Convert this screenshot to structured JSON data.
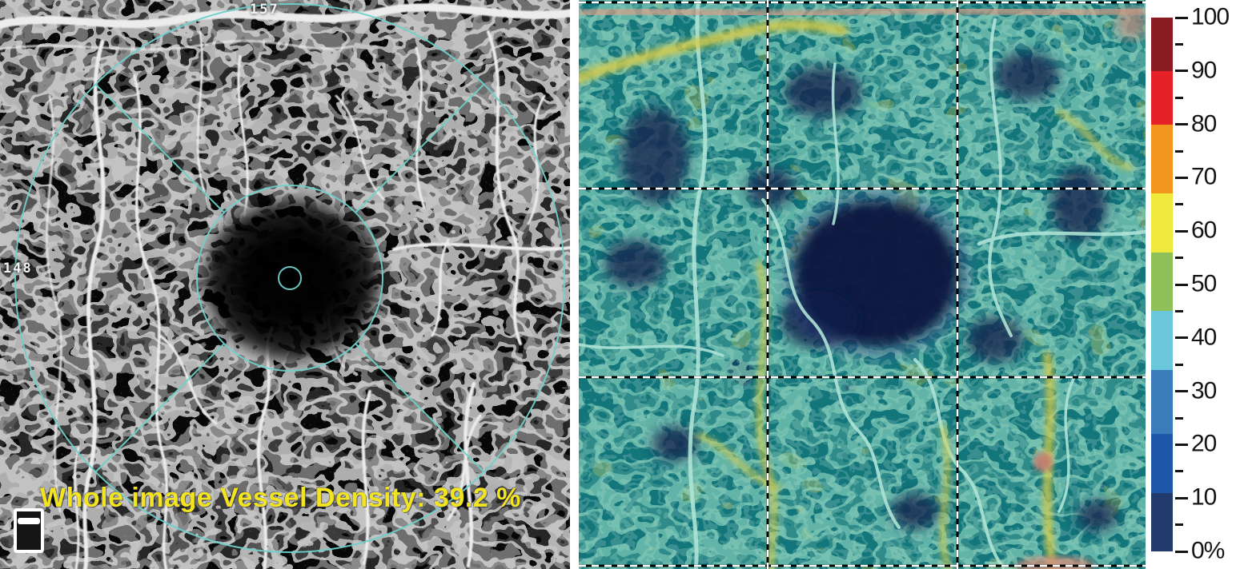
{
  "left_panel": {
    "top_scan_label": "157",
    "side_scan_label": "148",
    "caption": "Whole image Vessel Density: 39.2 %",
    "caption_color": "#f2e41e",
    "overlay_color": "#6fd0cb",
    "icon": "slab-layer-icon"
  },
  "right_panel": {
    "grid_rows": 3,
    "grid_cols": 3,
    "grid_line_style": "dashed white/black"
  },
  "colorbar": {
    "major_ticks": [
      {
        "value": 100,
        "label": "100"
      },
      {
        "value": 90,
        "label": "90"
      },
      {
        "value": 80,
        "label": "80"
      },
      {
        "value": 70,
        "label": "70"
      },
      {
        "value": 60,
        "label": "60"
      },
      {
        "value": 50,
        "label": "50"
      },
      {
        "value": 40,
        "label": "40"
      },
      {
        "value": 30,
        "label": "30"
      },
      {
        "value": 20,
        "label": "20"
      },
      {
        "value": 10,
        "label": "10"
      },
      {
        "value": 0,
        "label": "0%"
      }
    ],
    "minor_tick_values": [
      95,
      85,
      75,
      65,
      55,
      45,
      35,
      25,
      15,
      5
    ],
    "bands": [
      {
        "from": 100,
        "to": 90,
        "color": "#8c1c23"
      },
      {
        "from": 90,
        "to": 80,
        "color": "#e42127"
      },
      {
        "from": 80,
        "to": 67,
        "color": "#f2951f"
      },
      {
        "from": 67,
        "to": 56,
        "color": "#efe93c"
      },
      {
        "from": 56,
        "to": 45,
        "color": "#8fc05a"
      },
      {
        "from": 45,
        "to": 34,
        "color": "#6ac6da"
      },
      {
        "from": 34,
        "to": 22,
        "color": "#3a7cba"
      },
      {
        "from": 22,
        "to": 11,
        "color": "#1e57a8"
      },
      {
        "from": 11,
        "to": 0,
        "color": "#223a6c"
      }
    ]
  },
  "chart_data": {
    "type": "heatmap",
    "title": "",
    "description_visible_text": [
      "157",
      "148",
      "Whole image Vessel Density: 39.2 %",
      "0%"
    ],
    "value_range": [
      0,
      100
    ],
    "colorbar_tick_labels": [
      "100",
      "90",
      "80",
      "70",
      "60",
      "50",
      "40",
      "30",
      "20",
      "10",
      "0%"
    ],
    "colorbar_position": "right",
    "whole_image_vessel_density_percent": 39.2,
    "overlay_grid": "3x3 dashed sector grid on density map; ETDRS circles on angiogram"
  }
}
